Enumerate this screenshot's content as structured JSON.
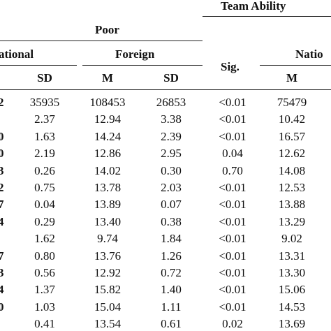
{
  "header": {
    "team_ability": "Team Ability",
    "poor": "Poor",
    "national_left": "ational",
    "foreign": "Foreign",
    "sig": "Sig.",
    "national_right": "Natio",
    "sd1": "SD",
    "m1": "M",
    "sd2": "SD",
    "m2": "M"
  },
  "row_stubs": [
    "2",
    "",
    "0",
    "0",
    "3",
    "2",
    "7",
    "4",
    "",
    "7",
    "3",
    "4",
    "0",
    ""
  ],
  "rows": [
    {
      "sd_nat": "35935",
      "m_for": "108453",
      "sd_for": "26853",
      "sig": "<0.01",
      "m_nat2": "75479"
    },
    {
      "sd_nat": "2.37",
      "m_for": "12.94",
      "sd_for": "3.38",
      "sig": "<0.01",
      "m_nat2": "10.42"
    },
    {
      "sd_nat": "1.63",
      "m_for": "14.24",
      "sd_for": "2.39",
      "sig": "<0.01",
      "m_nat2": "16.57"
    },
    {
      "sd_nat": "2.19",
      "m_for": "12.86",
      "sd_for": "2.95",
      "sig": "0.04",
      "m_nat2": "12.62"
    },
    {
      "sd_nat": "0.26",
      "m_for": "14.02",
      "sd_for": "0.30",
      "sig": "0.70",
      "m_nat2": "14.08"
    },
    {
      "sd_nat": "0.75",
      "m_for": "13.78",
      "sd_for": "2.03",
      "sig": "<0.01",
      "m_nat2": "12.53"
    },
    {
      "sd_nat": "0.04",
      "m_for": "13.89",
      "sd_for": "0.07",
      "sig": "<0.01",
      "m_nat2": "13.88"
    },
    {
      "sd_nat": "0.29",
      "m_for": "13.40",
      "sd_for": "0.38",
      "sig": "<0.01",
      "m_nat2": "13.29"
    },
    {
      "sd_nat": "1.62",
      "m_for": "9.74",
      "sd_for": "1.84",
      "sig": "<0.01",
      "m_nat2": "9.02"
    },
    {
      "sd_nat": "0.80",
      "m_for": "13.76",
      "sd_for": "1.26",
      "sig": "<0.01",
      "m_nat2": "13.31"
    },
    {
      "sd_nat": "0.56",
      "m_for": "12.92",
      "sd_for": "0.72",
      "sig": "<0.01",
      "m_nat2": "13.30"
    },
    {
      "sd_nat": "1.37",
      "m_for": "15.82",
      "sd_for": "1.40",
      "sig": "<0.01",
      "m_nat2": "15.06"
    },
    {
      "sd_nat": "1.03",
      "m_for": "15.04",
      "sd_for": "1.11",
      "sig": "<0.01",
      "m_nat2": "14.53"
    },
    {
      "sd_nat": "0.41",
      "m_for": "13.54",
      "sd_for": "0.61",
      "sig": "0.02",
      "m_nat2": "13.69"
    }
  ]
}
